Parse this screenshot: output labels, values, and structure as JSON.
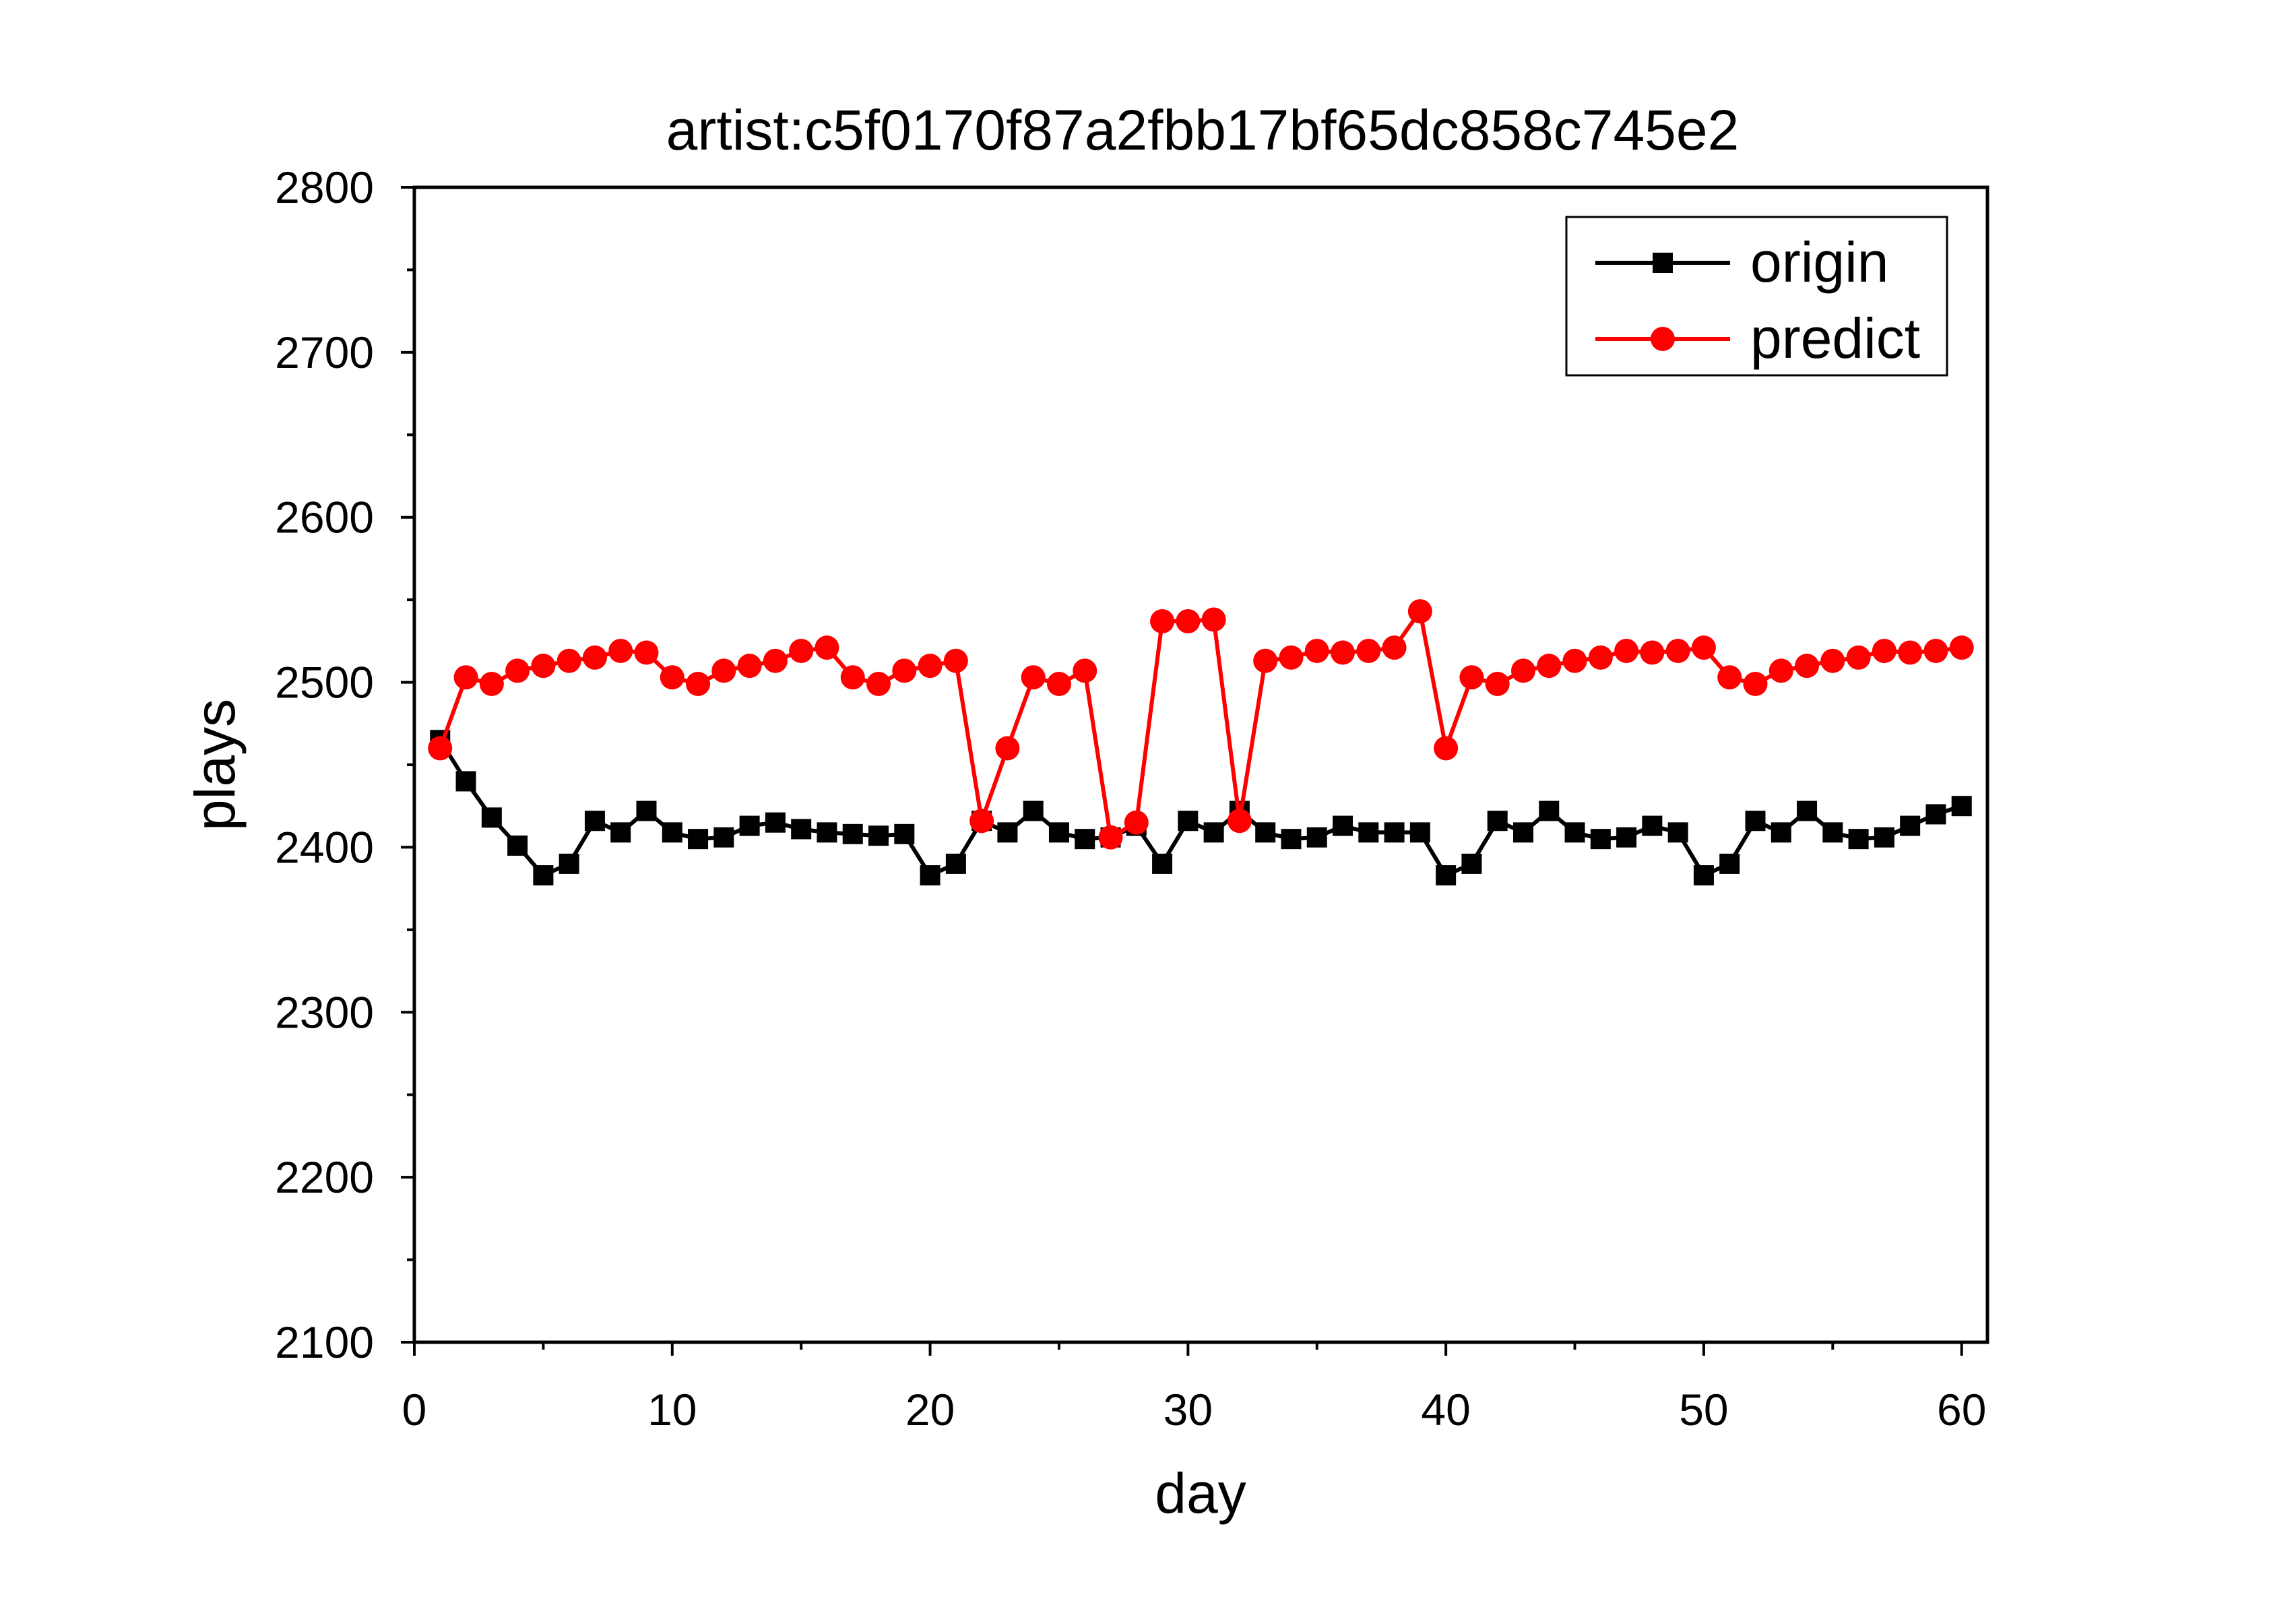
{
  "chart_data": {
    "type": "line",
    "title": "artist:c5f0170f87a2fbb17bf65dc858c745e2",
    "xlabel": "day",
    "ylabel": "plays",
    "xlim": [
      0,
      61
    ],
    "ylim": [
      2100,
      2800
    ],
    "xticks": [
      0,
      10,
      20,
      30,
      40,
      50,
      60
    ],
    "yticks": [
      2100,
      2200,
      2300,
      2400,
      2500,
      2600,
      2700,
      2800
    ],
    "grid": false,
    "legend_position": "top-right",
    "x": [
      1,
      2,
      3,
      4,
      5,
      6,
      7,
      8,
      9,
      10,
      11,
      12,
      13,
      14,
      15,
      16,
      17,
      18,
      19,
      20,
      21,
      22,
      23,
      24,
      25,
      26,
      27,
      28,
      29,
      30,
      31,
      32,
      33,
      34,
      35,
      36,
      37,
      38,
      39,
      40,
      41,
      42,
      43,
      44,
      45,
      46,
      47,
      48,
      49,
      50,
      51,
      52,
      53,
      54,
      55,
      56,
      57,
      58,
      59,
      60
    ],
    "series": [
      {
        "name": "origin",
        "color": "#000000",
        "marker": "square",
        "values": [
          2465,
          2440,
          2418,
          2401,
          2383,
          2390,
          2416,
          2409,
          2422,
          2409,
          2405,
          2406,
          2413,
          2415,
          2411,
          2409,
          2408,
          2407,
          2408,
          2383,
          2390,
          2416,
          2409,
          2422,
          2409,
          2405,
          2406,
          2413,
          2390,
          2416,
          2409,
          2422,
          2409,
          2405,
          2406,
          2413,
          2409,
          2409,
          2409,
          2383,
          2390,
          2416,
          2409,
          2422,
          2409,
          2405,
          2406,
          2413,
          2409,
          2383,
          2390,
          2416,
          2409,
          2422,
          2409,
          2405,
          2406,
          2413,
          2420,
          2425
        ]
      },
      {
        "name": "predict",
        "color": "#ff0000",
        "marker": "circle",
        "values": [
          2460,
          2503,
          2499,
          2507,
          2510,
          2513,
          2515,
          2519,
          2518,
          2503,
          2499,
          2507,
          2510,
          2513,
          2519,
          2521,
          2503,
          2499,
          2507,
          2510,
          2513,
          2416,
          2460,
          2503,
          2499,
          2507,
          2406,
          2415,
          2537,
          2537,
          2538,
          2416,
          2513,
          2515,
          2519,
          2518,
          2519,
          2521,
          2543,
          2460,
          2503,
          2499,
          2507,
          2510,
          2513,
          2515,
          2519,
          2518,
          2519,
          2521,
          2503,
          2499,
          2507,
          2510,
          2513,
          2515,
          2519,
          2518,
          2519,
          2521
        ]
      }
    ]
  }
}
